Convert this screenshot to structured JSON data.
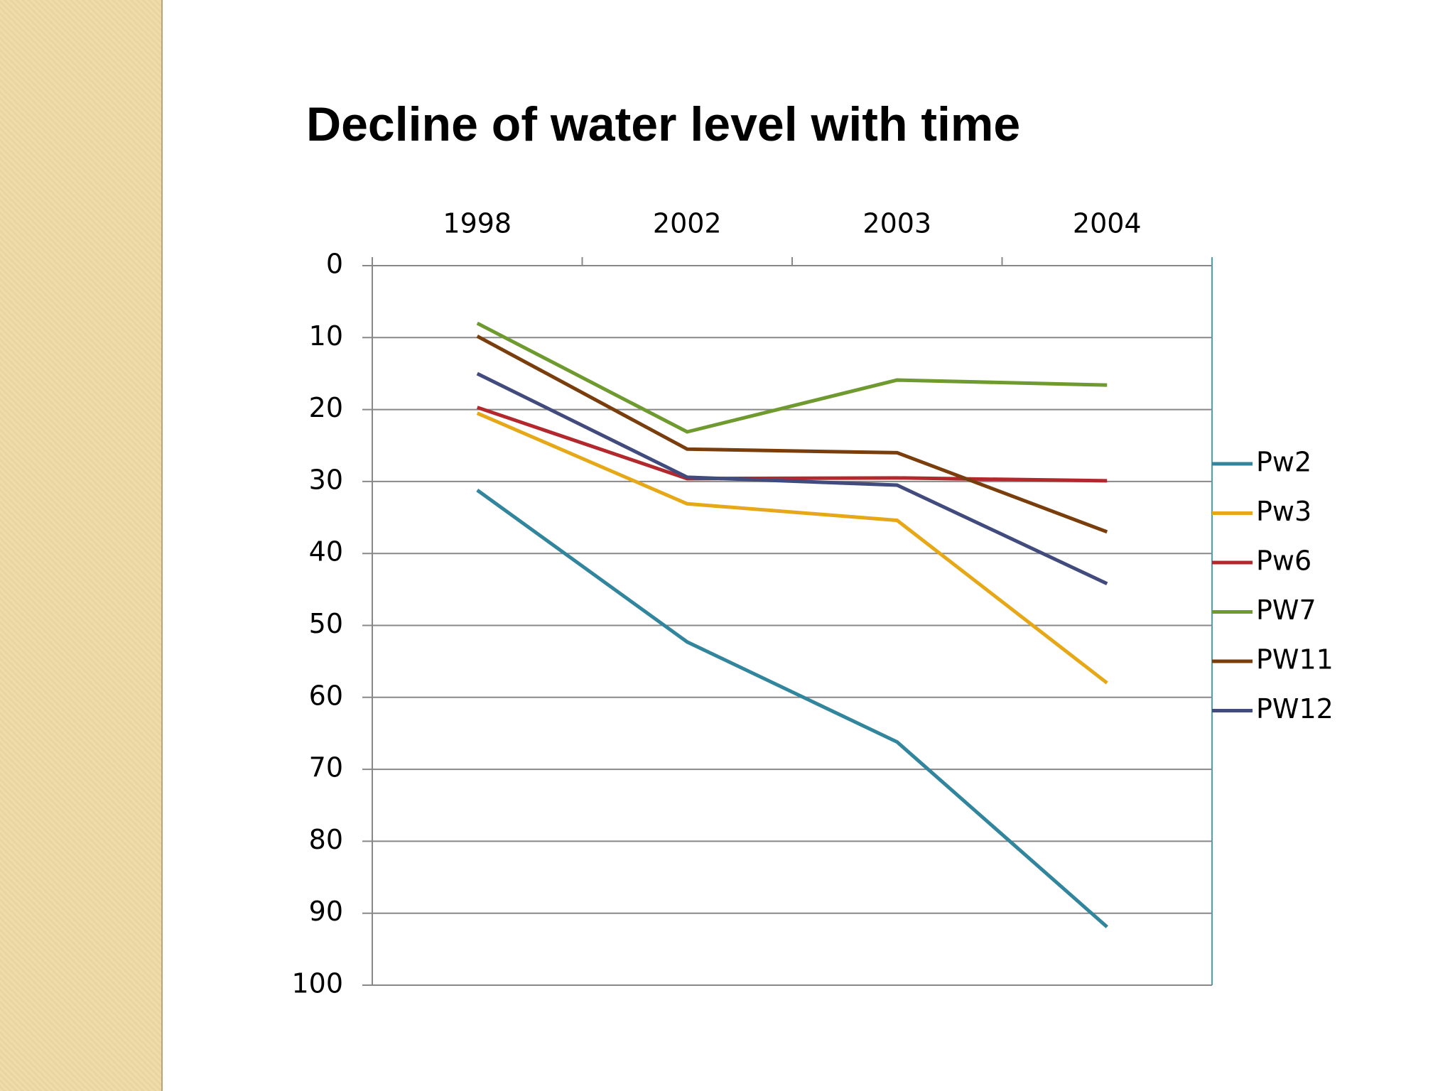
{
  "chart_data": {
    "type": "line",
    "title": "Decline of water level with time",
    "categories": [
      "1998",
      "2002",
      "2003",
      "2004"
    ],
    "series": [
      {
        "name": "Pw2",
        "color": "#31859c",
        "values": [
          31.2,
          52.3,
          66.2,
          91.9
        ]
      },
      {
        "name": "Pw3",
        "color": "#e6a817",
        "values": [
          20.5,
          33.1,
          35.4,
          58.0
        ]
      },
      {
        "name": "Pw6",
        "color": "#b3282d",
        "values": [
          19.7,
          29.6,
          29.5,
          29.9
        ]
      },
      {
        "name": "PW7",
        "color": "#6e9a2f",
        "values": [
          8.0,
          23.1,
          15.9,
          16.6
        ]
      },
      {
        "name": "PW11",
        "color": "#7a3d0c",
        "values": [
          9.8,
          25.5,
          26.0,
          37.0
        ]
      },
      {
        "name": "PW12",
        "color": "#414b7e",
        "values": [
          15.0,
          29.4,
          30.5,
          44.2
        ]
      }
    ],
    "ylim": [
      0,
      100
    ],
    "yticks": [
      0,
      10,
      20,
      30,
      40,
      50,
      60,
      70,
      80,
      90,
      100
    ],
    "y_reversed": true,
    "grid": true,
    "legend": "right"
  }
}
